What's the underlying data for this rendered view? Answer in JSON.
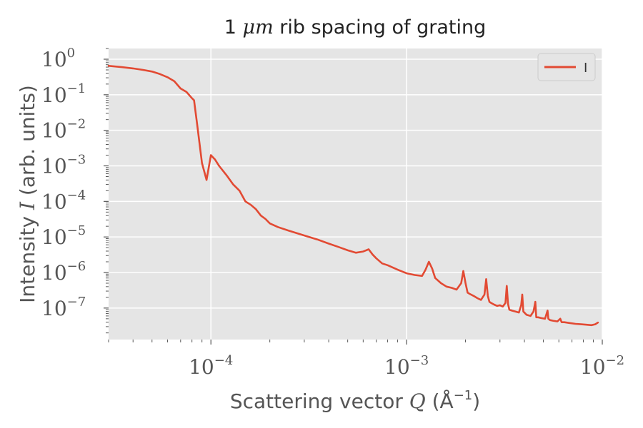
{
  "chart_data": {
    "type": "line",
    "title": {
      "prefix": "1 ",
      "math": "μm",
      "suffix": " rib spacing of grating"
    },
    "xlabel": {
      "prefix": "Scattering vector ",
      "math": "Q",
      "unit_open": " (Å",
      "unit_exp": "−1",
      "unit_close": ")"
    },
    "ylabel": {
      "prefix": "Intensity ",
      "math": "I",
      "suffix": " (arb. units)"
    },
    "xscale": "log",
    "yscale": "log",
    "xlim": [
      3e-05,
      0.01
    ],
    "ylim": [
      1.3e-08,
      2.0
    ],
    "x_ticks": [
      {
        "base": "10",
        "exp": "−4",
        "value": 0.0001
      },
      {
        "base": "10",
        "exp": "−3",
        "value": 0.001
      },
      {
        "base": "10",
        "exp": "−2",
        "value": 0.01
      }
    ],
    "y_ticks": [
      {
        "base": "10",
        "exp": "0",
        "value": 1
      },
      {
        "base": "10",
        "exp": "−1",
        "value": 0.1
      },
      {
        "base": "10",
        "exp": "−2",
        "value": 0.01
      },
      {
        "base": "10",
        "exp": "−3",
        "value": 0.001
      },
      {
        "base": "10",
        "exp": "−4",
        "value": 0.0001
      },
      {
        "base": "10",
        "exp": "−5",
        "value": 1e-05
      },
      {
        "base": "10",
        "exp": "−6",
        "value": 1e-06
      },
      {
        "base": "10",
        "exp": "−7",
        "value": 1e-07
      }
    ],
    "grid": true,
    "legend_position": "top-right",
    "colors": {
      "series": "#e24a33",
      "plot_background": "#e5e5e5",
      "grid": "#ffffff"
    },
    "series": [
      {
        "name": "I",
        "x": [
          3e-05,
          3.5e-05,
          4e-05,
          4.5e-05,
          5e-05,
          5.5e-05,
          6e-05,
          6.5e-05,
          7e-05,
          7.5e-05,
          8e-05,
          8.2e-05,
          8.5e-05,
          9e-05,
          9.5e-05,
          0.0001,
          0.000105,
          0.00011,
          0.00012,
          0.00013,
          0.00014,
          0.00015,
          0.00016,
          0.00017,
          0.00018,
          0.00019,
          0.0002,
          0.00022,
          0.00025,
          0.0003,
          0.00035,
          0.0004,
          0.00045,
          0.0005,
          0.00055,
          0.0006,
          0.00064,
          0.00067,
          0.0007,
          0.00075,
          0.0008,
          0.0009,
          0.001,
          0.0011,
          0.0012,
          0.00125,
          0.0013,
          0.00135,
          0.0014,
          0.0015,
          0.0016,
          0.0017,
          0.0018,
          0.0019,
          0.00195,
          0.002,
          0.00205,
          0.0021,
          0.0022,
          0.0023,
          0.0024,
          0.0025,
          0.00255,
          0.0026,
          0.00265,
          0.0027,
          0.0028,
          0.0029,
          0.003,
          0.0031,
          0.0032,
          0.00325,
          0.0033,
          0.00335,
          0.00345,
          0.0036,
          0.00375,
          0.00385,
          0.0039,
          0.00395,
          0.0041,
          0.0043,
          0.00445,
          0.00455,
          0.0046,
          0.0047,
          0.0049,
          0.0051,
          0.00525,
          0.0053,
          0.0054,
          0.0056,
          0.0059,
          0.0061,
          0.0062,
          0.0064,
          0.0068,
          0.0073,
          0.0078,
          0.0083,
          0.0088,
          0.0092,
          0.0095
        ],
        "y": [
          0.65,
          0.6,
          0.55,
          0.5,
          0.45,
          0.38,
          0.31,
          0.24,
          0.15,
          0.12,
          0.08,
          0.07,
          0.015,
          0.0012,
          0.0004,
          0.002,
          0.0015,
          0.001,
          0.00055,
          0.0003,
          0.0002,
          0.0001,
          8e-05,
          6e-05,
          4e-05,
          3.2e-05,
          2.4e-05,
          1.9e-05,
          1.5e-05,
          1.1e-05,
          8.5e-06,
          6.5e-06,
          5.2e-06,
          4.2e-06,
          3.6e-06,
          3.9e-06,
          4.5e-06,
          3.2e-06,
          2.5e-06,
          1.8e-06,
          1.6e-06,
          1.2e-06,
          9.5e-07,
          8.5e-07,
          8e-07,
          1.2e-06,
          2e-06,
          1.3e-06,
          7e-07,
          5e-07,
          4e-07,
          3.7e-07,
          3.3e-07,
          5e-07,
          1.1e-06,
          5e-07,
          2.7e-07,
          2.5e-07,
          2.2e-07,
          1.9e-07,
          1.7e-07,
          2.4e-07,
          6.5e-07,
          2.2e-07,
          1.5e-07,
          1.4e-07,
          1.25e-07,
          1.15e-07,
          1.2e-07,
          1.1e-07,
          1.4e-07,
          4.2e-07,
          1.3e-07,
          9e-08,
          8.5e-08,
          8e-08,
          7.5e-08,
          1.2e-07,
          2.4e-07,
          8e-08,
          6.5e-08,
          6e-08,
          8e-08,
          1.5e-07,
          5.5e-08,
          5.5e-08,
          5.2e-08,
          5e-08,
          8.5e-08,
          5e-08,
          4.6e-08,
          4.4e-08,
          4.2e-08,
          5e-08,
          4e-08,
          4e-08,
          3.8e-08,
          3.6e-08,
          3.5e-08,
          3.4e-08,
          3.3e-08,
          3.5e-08,
          3.9e-08
        ]
      }
    ]
  }
}
